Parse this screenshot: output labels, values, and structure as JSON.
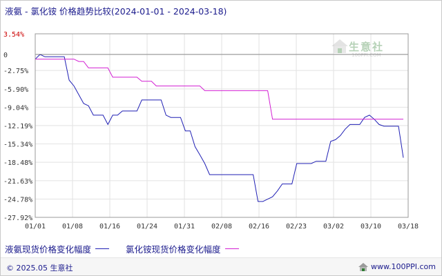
{
  "title": "液氨 - 氯化铵 价格趋势比较(2024-01-01 - 2024-03-18)",
  "colors": {
    "series1": "#1f1fb4",
    "series2": "#d21ed2",
    "grid": "#e2e2e2",
    "axis": "#9a9a9a",
    "top_tick": "#cc0000"
  },
  "chart_data": {
    "type": "line",
    "title": "液氨 - 氯化铵 价格趋势比较(2024-01-01 - 2024-03-18)",
    "xlabel": "",
    "ylabel": "",
    "x_ticks": [
      "01/01",
      "01/08",
      "01/16",
      "01/24",
      "01/31",
      "02/08",
      "02/16",
      "02/23",
      "03/02",
      "03/10",
      "03/18"
    ],
    "y_ticks": [
      "3.54%",
      "0",
      "-2.75%",
      "-5.90%",
      "-9.04%",
      "-12.19%",
      "-15.34%",
      "-18.48%",
      "-21.63%",
      "-24.78%",
      "-27.92%"
    ],
    "y_tick_values": [
      3.54,
      0,
      -2.75,
      -5.9,
      -9.04,
      -12.19,
      -15.34,
      -18.48,
      -21.63,
      -24.78,
      -27.92
    ],
    "ylim": [
      -27.92,
      3.54
    ],
    "xlim": [
      "2024-01-01",
      "2024-03-18"
    ],
    "grid": true,
    "legend_position": "bottom-left",
    "series": [
      {
        "name": "液氨现货价格变化幅度",
        "color": "#1f1fb4",
        "points": [
          [
            "2024-01-01",
            -0.8
          ],
          [
            "2024-01-02",
            0.0
          ],
          [
            "2024-01-03",
            -0.4
          ],
          [
            "2024-01-07",
            -0.4
          ],
          [
            "2024-01-08",
            -4.4
          ],
          [
            "2024-01-09",
            -5.4
          ],
          [
            "2024-01-11",
            -8.4
          ],
          [
            "2024-01-12",
            -8.8
          ],
          [
            "2024-01-13",
            -10.4
          ],
          [
            "2024-01-15",
            -10.4
          ],
          [
            "2024-01-16",
            -12.0
          ],
          [
            "2024-01-17",
            -10.4
          ],
          [
            "2024-01-18",
            -10.4
          ],
          [
            "2024-01-19",
            -9.7
          ],
          [
            "2024-01-21",
            -9.7
          ],
          [
            "2024-01-22",
            -9.7
          ],
          [
            "2024-01-23",
            -7.8
          ],
          [
            "2024-01-27",
            -7.8
          ],
          [
            "2024-01-28",
            -10.4
          ],
          [
            "2024-01-29",
            -10.8
          ],
          [
            "2024-01-31",
            -10.8
          ],
          [
            "2024-02-01",
            -13.1
          ],
          [
            "2024-02-02",
            -13.1
          ],
          [
            "2024-02-03",
            -15.8
          ],
          [
            "2024-02-04",
            -17.2
          ],
          [
            "2024-02-05",
            -18.7
          ],
          [
            "2024-02-06",
            -20.6
          ],
          [
            "2024-02-15",
            -20.6
          ],
          [
            "2024-02-16",
            -25.2
          ],
          [
            "2024-02-17",
            -25.2
          ],
          [
            "2024-02-18",
            -24.8
          ],
          [
            "2024-02-19",
            -24.4
          ],
          [
            "2024-02-20",
            -23.4
          ],
          [
            "2024-02-21",
            -22.2
          ],
          [
            "2024-02-22",
            -22.2
          ],
          [
            "2024-02-23",
            -22.2
          ],
          [
            "2024-02-24",
            -18.7
          ],
          [
            "2024-02-27",
            -18.7
          ],
          [
            "2024-02-28",
            -18.3
          ],
          [
            "2024-03-01",
            -18.3
          ],
          [
            "2024-03-02",
            -14.9
          ],
          [
            "2024-03-03",
            -14.6
          ],
          [
            "2024-03-04",
            -13.9
          ],
          [
            "2024-03-05",
            -12.8
          ],
          [
            "2024-03-06",
            -12.0
          ],
          [
            "2024-03-08",
            -12.0
          ],
          [
            "2024-03-09",
            -10.8
          ],
          [
            "2024-03-10",
            -10.4
          ],
          [
            "2024-03-11",
            -11.1
          ],
          [
            "2024-03-12",
            -12.0
          ],
          [
            "2024-03-13",
            -12.3
          ],
          [
            "2024-03-15",
            -12.3
          ],
          [
            "2024-03-16",
            -12.3
          ],
          [
            "2024-03-17",
            -17.7
          ]
        ]
      },
      {
        "name": "氯化铵现货价格变化幅度",
        "color": "#d21ed2",
        "points": [
          [
            "2024-01-01",
            -0.8
          ],
          [
            "2024-01-09",
            -0.8
          ],
          [
            "2024-01-10",
            -1.2
          ],
          [
            "2024-01-11",
            -1.2
          ],
          [
            "2024-01-12",
            -2.3
          ],
          [
            "2024-01-16",
            -2.3
          ],
          [
            "2024-01-17",
            -3.9
          ],
          [
            "2024-01-22",
            -3.9
          ],
          [
            "2024-01-23",
            -4.6
          ],
          [
            "2024-01-25",
            -4.6
          ],
          [
            "2024-01-26",
            -5.4
          ],
          [
            "2024-02-04",
            -5.4
          ],
          [
            "2024-02-05",
            -6.2
          ],
          [
            "2024-02-18",
            -6.2
          ],
          [
            "2024-02-19",
            -11.1
          ],
          [
            "2024-03-17",
            -11.1
          ]
        ]
      }
    ]
  },
  "legend": {
    "series1": "液氨现货价格变化幅度",
    "series2": "氯化铵现货价格变化幅度"
  },
  "watermark": {
    "name": "生意社",
    "url": "100PPI.COM"
  },
  "footer": {
    "copyright": "© 2025.05 生意社",
    "site": "www.100PPI.com"
  }
}
